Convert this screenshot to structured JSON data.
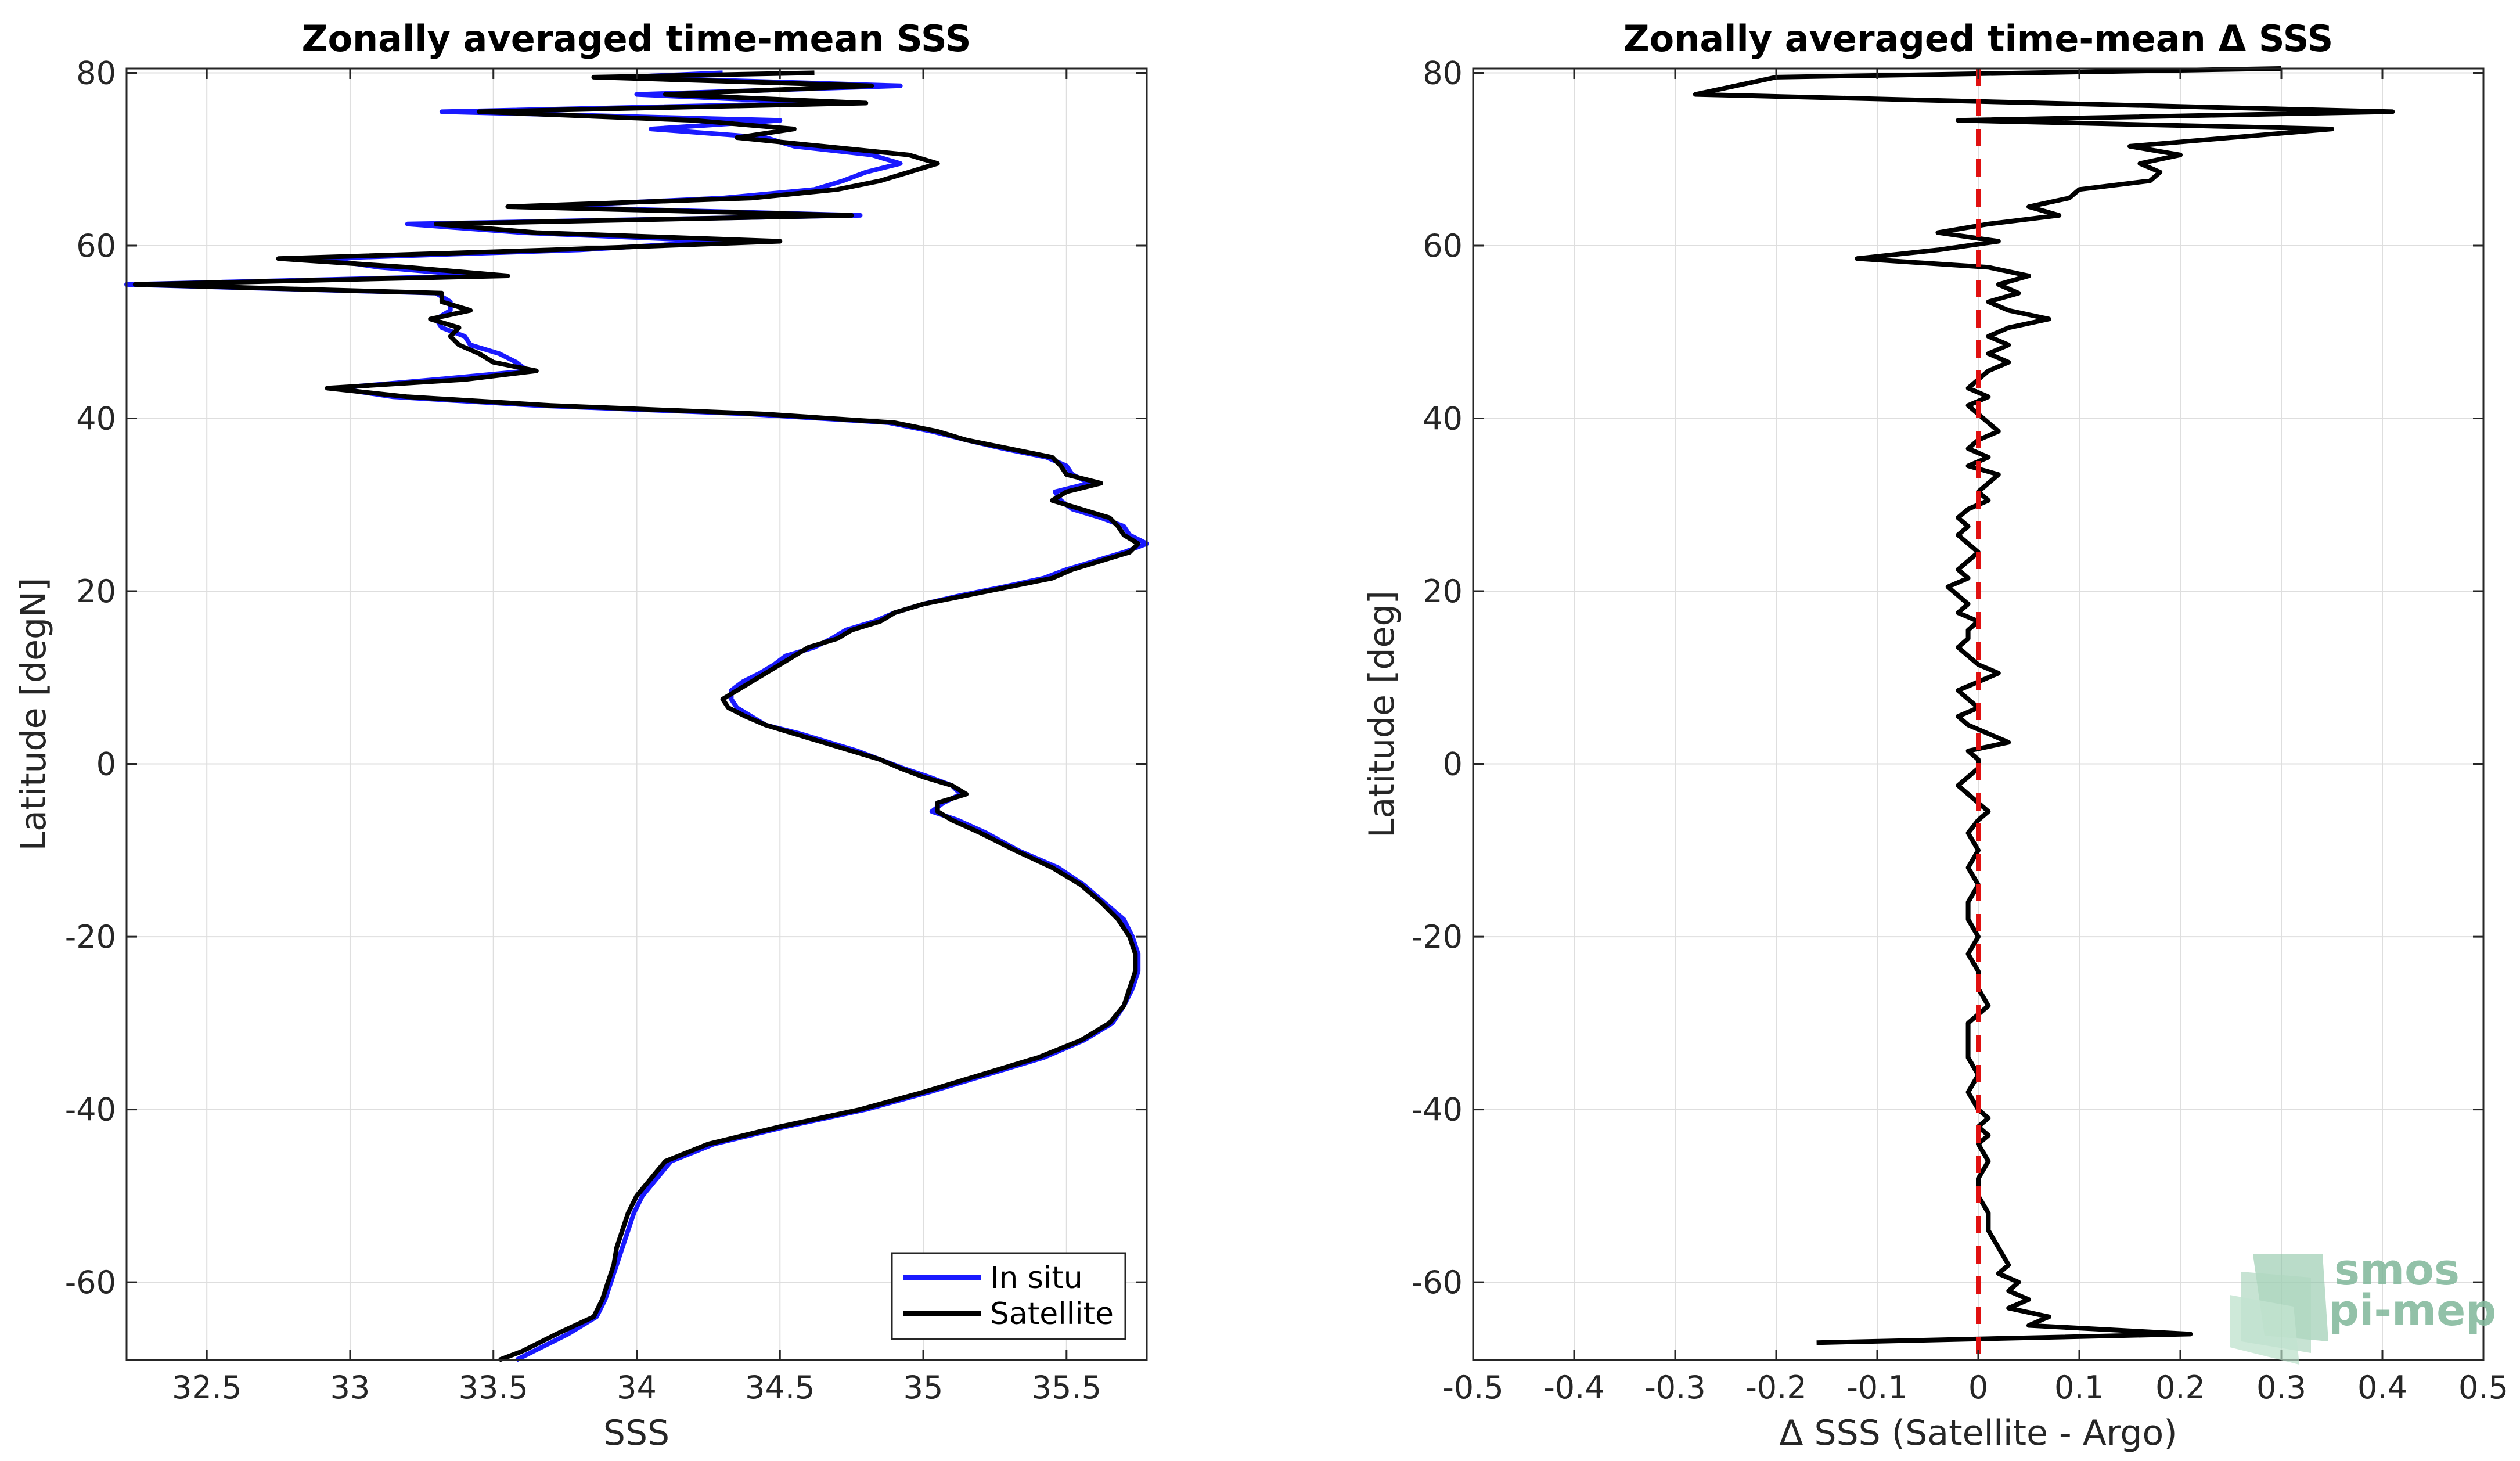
{
  "colors": {
    "in_situ": "#1a1aff",
    "satellite": "#000000",
    "zero_line": "#e01010",
    "grid": "#dedede",
    "logo": "#7fb79a"
  },
  "chart_data": [
    {
      "type": "line",
      "title": "Zonally averaged time-mean SSS",
      "xlabel": "SSS",
      "ylabel": "Latitude [degN]",
      "xlim": [
        32.22,
        35.78
      ],
      "ylim": [
        -69,
        80.5
      ],
      "xticks": [
        32.5,
        33,
        33.5,
        34,
        34.5,
        35,
        35.5
      ],
      "yticks": [
        -60,
        -40,
        -20,
        0,
        20,
        40,
        60,
        80
      ],
      "legend": {
        "position": "bottom-right",
        "entries": [
          "In situ",
          "Satellite"
        ]
      },
      "series": [
        {
          "name": "Satellite",
          "lat": [
            80,
            79.5,
            78.5,
            77.5,
            76.5,
            75.5,
            74.5,
            73.5,
            72.5,
            71.5,
            70.5,
            69.5,
            68.5,
            67.5,
            66.5,
            65.5,
            64.5,
            63.5,
            62.5,
            61.5,
            60.5,
            59.5,
            58.5,
            57.5,
            56.5,
            55.5,
            54.5,
            53.5,
            52.5,
            51.5,
            50.5,
            49.5,
            48.5,
            47.5,
            46.5,
            45.5,
            44.5,
            43.5,
            42.5,
            41.5,
            40.5,
            39.5,
            38.5,
            37.5,
            36.5,
            35.5,
            34.5,
            33.5,
            32.5,
            31.5,
            30.5,
            29.5,
            28.5,
            27.5,
            26.5,
            25.5,
            24.5,
            23.5,
            22.5,
            21.5,
            20.5,
            19.5,
            18.5,
            17.5,
            16.5,
            15.5,
            14.5,
            13.5,
            12.5,
            11.5,
            10.5,
            9.5,
            8.5,
            7.5,
            6.5,
            5.5,
            4.5,
            3.5,
            2.5,
            1.5,
            0.5,
            -0.5,
            -1.5,
            -2.5,
            -3.5,
            -4.5,
            -5.5,
            -6.5,
            -8,
            -10,
            -12,
            -14,
            -16,
            -18,
            -20,
            -22,
            -24,
            -26,
            -28,
            -30,
            -32,
            -34,
            -36,
            -38,
            -40,
            -42,
            -44,
            -46,
            -48,
            -50,
            -52,
            -54,
            -56,
            -58,
            -60,
            -62,
            -64,
            -66,
            -68,
            -69
          ],
          "values": [
            34.62,
            33.85,
            34.82,
            34.1,
            34.8,
            33.45,
            34.2,
            34.55,
            34.35,
            34.65,
            34.95,
            35.05,
            34.95,
            34.85,
            34.7,
            34.4,
            33.55,
            34.75,
            33.3,
            33.65,
            34.5,
            33.7,
            32.75,
            33.2,
            33.55,
            32.25,
            33.32,
            33.32,
            33.42,
            33.28,
            33.38,
            33.35,
            33.38,
            33.45,
            33.5,
            33.65,
            33.4,
            32.92,
            33.2,
            33.7,
            34.45,
            34.9,
            35.05,
            35.15,
            35.3,
            35.45,
            35.48,
            35.5,
            35.62,
            35.5,
            35.45,
            35.55,
            35.65,
            35.68,
            35.7,
            35.75,
            35.72,
            35.62,
            35.52,
            35.45,
            35.3,
            35.15,
            35.0,
            34.9,
            34.85,
            34.75,
            34.7,
            34.6,
            34.55,
            34.5,
            34.45,
            34.4,
            34.35,
            34.3,
            34.32,
            34.38,
            34.45,
            34.55,
            34.65,
            34.75,
            34.85,
            34.92,
            35.0,
            35.1,
            35.15,
            35.05,
            35.05,
            35.1,
            35.2,
            35.32,
            35.45,
            35.55,
            35.62,
            35.68,
            35.72,
            35.74,
            35.74,
            35.72,
            35.7,
            35.65,
            35.55,
            35.4,
            35.2,
            35.0,
            34.78,
            34.5,
            34.25,
            34.1,
            34.05,
            34.0,
            33.97,
            33.95,
            33.93,
            33.92,
            33.9,
            33.88,
            33.85,
            33.72,
            33.6,
            33.52
          ]
        },
        {
          "name": "In situ",
          "lat": [
            80,
            79.5,
            78.5,
            77.5,
            76.5,
            75.5,
            74.5,
            73.5,
            72.5,
            71.5,
            70.5,
            69.5,
            68.5,
            67.5,
            66.5,
            65.5,
            64.5,
            63.5,
            62.5,
            61.5,
            60.5,
            59.5,
            58.5,
            57.5,
            56.5,
            55.5,
            54.5,
            53.5,
            52.5,
            51.5,
            50.5,
            49.5,
            48.5,
            47.5,
            46.5,
            45.5,
            44.5,
            43.5,
            42.5,
            41.5,
            40.5,
            39.5,
            38.5,
            37.5,
            36.5,
            35.5,
            34.5,
            33.5,
            32.5,
            31.5,
            30.5,
            29.5,
            28.5,
            27.5,
            26.5,
            25.5,
            24.5,
            23.5,
            22.5,
            21.5,
            20.5,
            19.5,
            18.5,
            17.5,
            16.5,
            15.5,
            14.5,
            13.5,
            12.5,
            11.5,
            10.5,
            9.5,
            8.5,
            7.5,
            6.5,
            5.5,
            4.5,
            3.5,
            2.5,
            1.5,
            0.5,
            -0.5,
            -1.5,
            -2.5,
            -3.5,
            -4.5,
            -5.5,
            -6.5,
            -8,
            -10,
            -12,
            -14,
            -16,
            -18,
            -20,
            -22,
            -24,
            -26,
            -28,
            -30,
            -32,
            -34,
            -36,
            -38,
            -40,
            -42,
            -44,
            -46,
            -48,
            -50,
            -52,
            -54,
            -56,
            -58,
            -60,
            -62,
            -64,
            -66,
            -68,
            -69
          ],
          "values": [
            34.3,
            33.95,
            34.92,
            34.0,
            34.65,
            33.32,
            34.5,
            34.05,
            34.45,
            34.55,
            34.82,
            34.92,
            34.8,
            34.72,
            34.62,
            34.3,
            33.65,
            34.78,
            33.2,
            33.6,
            34.3,
            33.8,
            32.9,
            33.1,
            33.45,
            32.22,
            33.3,
            33.35,
            33.35,
            33.3,
            33.32,
            33.4,
            33.42,
            33.52,
            33.58,
            33.62,
            33.3,
            32.95,
            33.15,
            33.65,
            34.4,
            34.88,
            35.03,
            35.15,
            35.28,
            35.43,
            35.5,
            35.52,
            35.58,
            35.46,
            35.48,
            35.52,
            35.62,
            35.7,
            35.72,
            35.78,
            35.7,
            35.6,
            35.5,
            35.42,
            35.28,
            35.13,
            35.0,
            34.9,
            34.83,
            34.73,
            34.68,
            34.62,
            34.52,
            34.48,
            34.43,
            34.37,
            34.33,
            34.33,
            34.35,
            34.4,
            34.45,
            34.57,
            34.67,
            34.77,
            34.85,
            34.93,
            35.02,
            35.1,
            35.13,
            35.07,
            35.03,
            35.12,
            35.22,
            35.33,
            35.47,
            35.56,
            35.63,
            35.7,
            35.73,
            35.75,
            35.75,
            35.73,
            35.7,
            35.66,
            35.56,
            35.42,
            35.22,
            35.02,
            34.8,
            34.52,
            34.27,
            34.12,
            34.07,
            34.02,
            33.99,
            33.97,
            33.95,
            33.93,
            33.91,
            33.89,
            33.86,
            33.76,
            33.64,
            33.58
          ]
        }
      ]
    },
    {
      "type": "line",
      "title": "Zonally averaged time-mean Δ SSS",
      "xlabel": "Δ SSS (Satellite - Argo)",
      "ylabel": "Latitude [deg]",
      "xlim": [
        -0.5,
        0.5
      ],
      "ylim": [
        -69,
        80.5
      ],
      "xticks": [
        -0.5,
        -0.4,
        -0.3,
        -0.2,
        -0.1,
        0,
        0.1,
        0.2,
        0.3,
        0.4,
        0.5
      ],
      "yticks": [
        -60,
        -40,
        -20,
        0,
        20,
        40,
        60,
        80
      ],
      "reference_line": {
        "x": 0,
        "style": "dashed",
        "color": "red"
      },
      "series": [
        {
          "name": "Satellite - Argo",
          "lat": [
            80.5,
            79.5,
            77.5,
            75.5,
            74.5,
            73.5,
            71.5,
            70.5,
            69.5,
            68.5,
            67.5,
            66.5,
            65.5,
            64.5,
            63.5,
            62.5,
            61.5,
            60.5,
            59.5,
            58.5,
            57.5,
            56.5,
            55.5,
            54.5,
            53.5,
            52.5,
            51.5,
            50.5,
            49.5,
            48.5,
            47.5,
            46.5,
            45.5,
            44.5,
            43.5,
            42.5,
            41.5,
            40.5,
            39.5,
            38.5,
            37.5,
            36.5,
            35.5,
            34.5,
            33.5,
            32.5,
            31.5,
            30.5,
            29.5,
            28.5,
            27.5,
            26.5,
            25.5,
            24.5,
            23.5,
            22.5,
            21.5,
            20.5,
            19.5,
            18.5,
            17.5,
            16.5,
            15.5,
            14.5,
            13.5,
            12.5,
            11.5,
            10.5,
            9.5,
            8.5,
            7.5,
            6.5,
            5.5,
            4.5,
            3.5,
            2.5,
            1.5,
            0.5,
            -0.5,
            -1.5,
            -2.5,
            -3.5,
            -4.5,
            -5.5,
            -6.5,
            -8,
            -10,
            -12,
            -14,
            -16,
            -18,
            -20,
            -22,
            -24,
            -26,
            -28,
            -30,
            -32,
            -34,
            -36,
            -38,
            -40,
            -41,
            -42,
            -43,
            -44,
            -46,
            -48,
            -50,
            -52,
            -54,
            -56,
            -58,
            -59,
            -60,
            -61,
            -62,
            -63,
            -64,
            -65,
            -66,
            -67,
            -68,
            -69
          ],
          "values": [
            0.3,
            -0.2,
            -0.28,
            0.41,
            -0.02,
            0.35,
            0.15,
            0.2,
            0.16,
            0.18,
            0.17,
            0.1,
            0.09,
            0.05,
            0.08,
            0.01,
            -0.04,
            0.02,
            -0.04,
            -0.12,
            0.01,
            0.05,
            0.02,
            0.04,
            0.01,
            0.03,
            0.07,
            0.03,
            0.01,
            0.03,
            0.01,
            0.03,
            0.01,
            0.0,
            -0.01,
            0.01,
            -0.01,
            0.0,
            0.01,
            0.02,
            0.0,
            -0.01,
            0.01,
            -0.01,
            0.02,
            0.01,
            0.0,
            0.01,
            -0.01,
            -0.02,
            -0.01,
            -0.02,
            -0.01,
            0.0,
            -0.01,
            -0.02,
            -0.01,
            -0.03,
            -0.02,
            -0.01,
            -0.02,
            0.0,
            -0.01,
            -0.01,
            -0.02,
            -0.01,
            0.0,
            0.02,
            0.0,
            -0.02,
            -0.01,
            0.0,
            -0.02,
            -0.01,
            0.01,
            0.03,
            -0.01,
            0.0,
            0.0,
            -0.01,
            -0.02,
            -0.01,
            0.0,
            0.01,
            0.0,
            -0.01,
            0.0,
            -0.01,
            0.0,
            -0.01,
            -0.01,
            0.0,
            -0.01,
            0.0,
            0.0,
            0.01,
            -0.01,
            -0.01,
            -0.01,
            0.0,
            -0.01,
            0.0,
            0.01,
            0.0,
            0.01,
            0.0,
            0.01,
            0.0,
            0.0,
            0.01,
            0.01,
            0.02,
            0.03,
            0.02,
            0.04,
            0.03,
            0.05,
            0.03,
            0.07,
            0.05,
            0.21,
            -0.16
          ]
        }
      ]
    }
  ],
  "logo": {
    "line1": "smos",
    "line2": "pi-mep"
  }
}
